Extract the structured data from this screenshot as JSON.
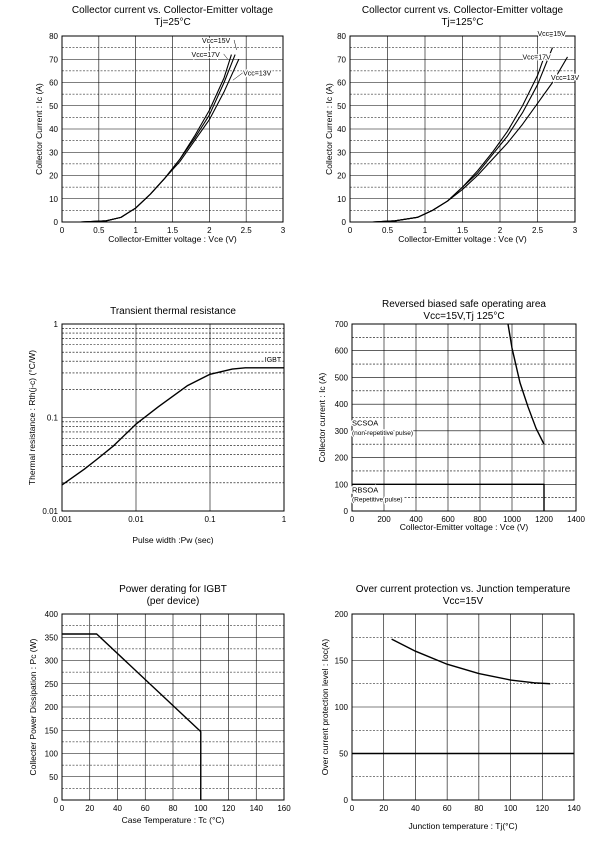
{
  "chart_data": [
    {
      "type": "line",
      "title": "Collector current vs. Collector-Emitter voltage",
      "subtitle": "Tj=25°C",
      "xlabel": "Collector-Emitter voltage : Vce  (V)",
      "ylabel": "Collector Current : Ic  (A)",
      "xlim": [
        0,
        3
      ],
      "ylim": [
        0,
        80
      ],
      "xticks": [
        "0",
        "0.5",
        "1",
        "1.5",
        "2",
        "2.5",
        "3"
      ],
      "yticks": [
        "0",
        "10",
        "20",
        "30",
        "40",
        "50",
        "60",
        "70",
        "80"
      ],
      "grid": true,
      "series": [
        {
          "name": "Vcc=15V",
          "x": [
            0.25,
            0.6,
            0.8,
            1.0,
            1.2,
            1.4,
            1.6,
            1.8,
            2.0,
            2.2,
            2.35
          ],
          "y": [
            0,
            0.5,
            2,
            6,
            12,
            19,
            27,
            36,
            46,
            60,
            72
          ]
        },
        {
          "name": "Vcc=17V",
          "x": [
            0.25,
            0.6,
            0.8,
            1.0,
            1.2,
            1.4,
            1.6,
            1.8,
            2.0,
            2.2,
            2.3
          ],
          "y": [
            0,
            0.5,
            2,
            6,
            12,
            19,
            27,
            37,
            48,
            62,
            72
          ]
        },
        {
          "name": "Vcc=13V",
          "x": [
            0.25,
            0.6,
            0.8,
            1.0,
            1.2,
            1.4,
            1.6,
            1.8,
            2.0,
            2.2,
            2.4
          ],
          "y": [
            0,
            0.5,
            2,
            6,
            12,
            19,
            26,
            35,
            44,
            56,
            70
          ]
        }
      ]
    },
    {
      "type": "line",
      "title": "Collector current vs. Collector-Emitter voltage",
      "subtitle": "Tj=125°C",
      "xlabel": "Collector-Emitter voltage : Vce  (V)",
      "ylabel": "Collector Current : Ic  (A)",
      "xlim": [
        0,
        3
      ],
      "ylim": [
        0,
        80
      ],
      "xticks": [
        "0",
        "0.5",
        "1",
        "1.5",
        "2",
        "2.5",
        "3"
      ],
      "yticks": [
        "0",
        "10",
        "20",
        "30",
        "40",
        "50",
        "60",
        "70",
        "80"
      ],
      "grid": true,
      "series": [
        {
          "name": "Vcc=15V",
          "x": [
            0.3,
            0.6,
            0.9,
            1.1,
            1.3,
            1.5,
            1.7,
            1.9,
            2.1,
            2.3,
            2.5,
            2.7
          ],
          "y": [
            0,
            0.5,
            2,
            5,
            9,
            15,
            21,
            29,
            37,
            47,
            59,
            75
          ]
        },
        {
          "name": "Vcc=17V",
          "x": [
            0.3,
            0.6,
            0.9,
            1.1,
            1.3,
            1.5,
            1.7,
            1.9,
            2.1,
            2.3,
            2.5,
            2.6
          ],
          "y": [
            0,
            0.5,
            2,
            5,
            9,
            15,
            22,
            30,
            39,
            50,
            63,
            72
          ]
        },
        {
          "name": "Vcc=13V",
          "x": [
            0.3,
            0.6,
            0.9,
            1.1,
            1.3,
            1.5,
            1.7,
            1.9,
            2.1,
            2.3,
            2.5,
            2.7,
            2.9
          ],
          "y": [
            0,
            0.5,
            2,
            5,
            9,
            14,
            20,
            27,
            34,
            42,
            51,
            60,
            71
          ]
        }
      ]
    },
    {
      "type": "line",
      "title": "Transient thermal resistance",
      "xlabel": "Pulse width :Pw (sec)",
      "ylabel": "Thermal resistance : Rth(j-c)  (°C/W)",
      "xscale": "log",
      "yscale": "log",
      "xlim": [
        0.001,
        1
      ],
      "ylim": [
        0.01,
        1
      ],
      "xticks": [
        "0.001",
        "0.01",
        "0.1",
        "1"
      ],
      "yticks": [
        "0.01",
        "0.1",
        "1"
      ],
      "grid": true,
      "series": [
        {
          "name": "IGBT",
          "x": [
            0.001,
            0.002,
            0.003,
            0.005,
            0.01,
            0.02,
            0.05,
            0.1,
            0.2,
            0.3,
            0.5,
            1.0
          ],
          "y": [
            0.019,
            0.028,
            0.036,
            0.05,
            0.085,
            0.13,
            0.22,
            0.29,
            0.33,
            0.34,
            0.34,
            0.34
          ]
        }
      ]
    },
    {
      "type": "line",
      "title": "Reversed biased safe operating area",
      "subtitle": "Vcc=15V,Tj   125°C",
      "xlabel": "Collector-Emitter voltage : Vce (V)",
      "ylabel": "Collector current : Ic (A)",
      "xlim": [
        0,
        1400
      ],
      "ylim": [
        0,
        700
      ],
      "xticks": [
        "0",
        "200",
        "400",
        "600",
        "800",
        "1000",
        "1200",
        "1400"
      ],
      "yticks": [
        "0",
        "100",
        "200",
        "300",
        "400",
        "500",
        "600",
        "700"
      ],
      "grid": true,
      "annotations": [
        {
          "text": "SCSOA",
          "x": 50,
          "y": 320
        },
        {
          "text": "(non-repetitive pulse)",
          "x": 50,
          "y": 285
        },
        {
          "text": "RBSOA",
          "x": 50,
          "y": 70
        },
        {
          "text": "(Repetitive pulse)",
          "x": 50,
          "y": 35
        }
      ],
      "series": [
        {
          "name": "SCSOA",
          "x": [
            975,
            1000,
            1050,
            1100,
            1150,
            1200
          ],
          "y": [
            700,
            610,
            480,
            390,
            310,
            250
          ]
        },
        {
          "name": "RBSOA",
          "x": [
            0,
            1200,
            1200
          ],
          "y": [
            100,
            100,
            0
          ]
        }
      ]
    },
    {
      "type": "line",
      "title": "Power derating for IGBT",
      "subtitle": "(per device)",
      "xlabel": "Case Temperature : Tc (°C)",
      "ylabel": "Collecter Power Dissipation : Pc (W)",
      "xlim": [
        0,
        160
      ],
      "ylim": [
        0,
        400
      ],
      "xticks": [
        "0",
        "20",
        "40",
        "60",
        "80",
        "100",
        "120",
        "140",
        "160"
      ],
      "yticks": [
        "0",
        "50",
        "100",
        "150",
        "200",
        "250",
        "300",
        "350",
        "400"
      ],
      "grid": true,
      "series": [
        {
          "x": [
            0,
            25,
            100,
            100
          ],
          "y": [
            357,
            357,
            147,
            0
          ]
        }
      ]
    },
    {
      "type": "line",
      "title": "Over current protection vs. Junction temperature",
      "subtitle": "Vcc=15V",
      "xlabel": "Junction temperature : Tj(°C)",
      "ylabel": "Over current protection level : Ioc(A)",
      "xlim": [
        0,
        140
      ],
      "ylim": [
        0,
        200
      ],
      "xticks": [
        "0",
        "20",
        "40",
        "60",
        "80",
        "100",
        "120",
        "140"
      ],
      "yticks": [
        "0",
        "50",
        "100",
        "150",
        "200"
      ],
      "grid": true,
      "series": [
        {
          "x": [
            25,
            40,
            60,
            80,
            100,
            115,
            125
          ],
          "y": [
            173,
            160,
            146,
            136,
            129,
            126,
            125
          ]
        },
        {
          "x": [
            0,
            140
          ],
          "y": [
            50,
            50
          ]
        }
      ]
    }
  ]
}
